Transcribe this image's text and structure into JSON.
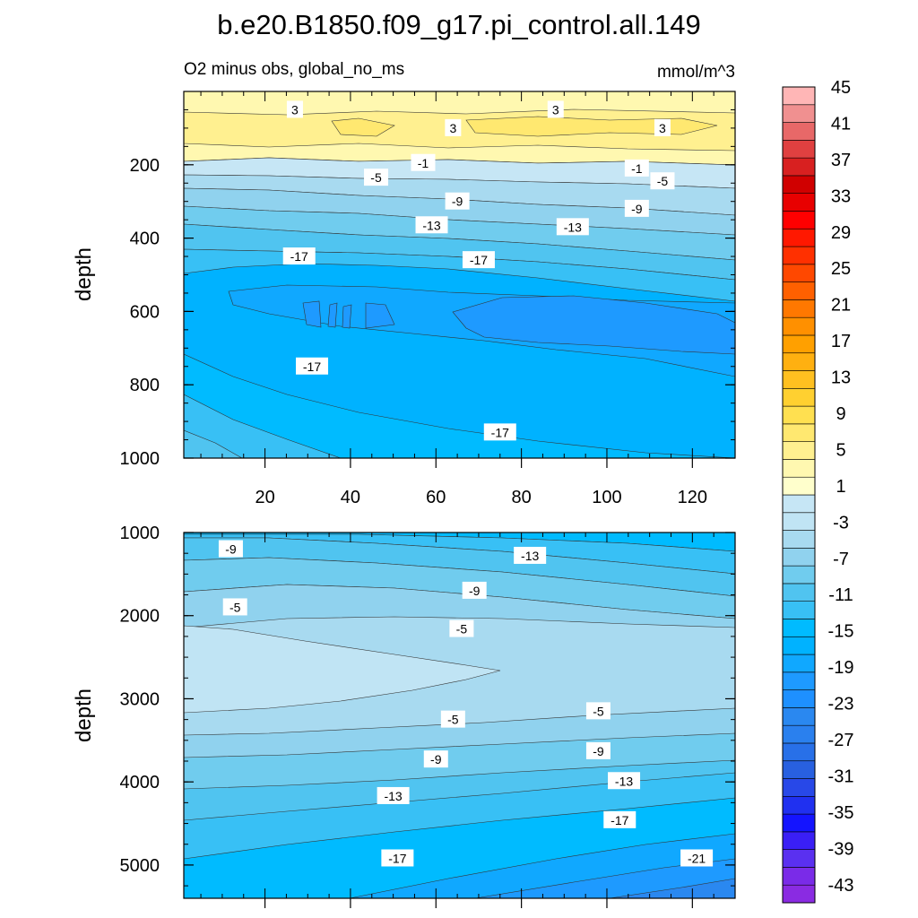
{
  "chart_data": {
    "type": "contour",
    "title": "b.e20.B1850.f09_g17.pi_control.all.149",
    "subtitle_left": "O2 minus obs, global_no_ms",
    "subtitle_right": "mmol/m^3",
    "ylabel": "depth",
    "colorbar": {
      "levels": [
        -45,
        -43,
        -41,
        -39,
        -37,
        -35,
        -33,
        -31,
        -29,
        -27,
        -25,
        -23,
        -21,
        -19,
        -17,
        -15,
        -13,
        -11,
        -9,
        -7,
        -5,
        -3,
        -1,
        1,
        3,
        5,
        7,
        9,
        11,
        13,
        15,
        17,
        19,
        21,
        23,
        25,
        27,
        29,
        31,
        33,
        35,
        37,
        39,
        41,
        43,
        45
      ],
      "tick_labels": [
        "45",
        "41",
        "37",
        "33",
        "29",
        "25",
        "21",
        "17",
        "13",
        "9",
        "5",
        "1",
        "-3",
        "-7",
        "-11",
        "-15",
        "-19",
        "-23",
        "-27",
        "-31",
        "-35",
        "-39",
        "-43"
      ],
      "colors": [
        "#8a2be2",
        "#7a2be8",
        "#5a30f0",
        "#3a1ff5",
        "#1414ff",
        "#2030f0",
        "#2848e8",
        "#2860e0",
        "#2870e8",
        "#2a80ee",
        "#2a88f0",
        "#1e90ff",
        "#1e9aff",
        "#10a8ff",
        "#00b2ff",
        "#00bbff",
        "#38c0f5",
        "#50c4f0",
        "#70ccee",
        "#90d2ee",
        "#a8daf0",
        "#c0e4f4",
        "#c6e6f5",
        "#ffffcc",
        "#fff8b0",
        "#fff090",
        "#ffe870",
        "#ffe050",
        "#ffd030",
        "#ffc020",
        "#ffb010",
        "#ffa000",
        "#ff9000",
        "#ff7800",
        "#ff6000",
        "#ff4800",
        "#ff3000",
        "#ff1800",
        "#ff0000",
        "#e80000",
        "#d00000",
        "#d82020",
        "#e04040",
        "#e86868",
        "#f09090",
        "#ffb6b6"
      ]
    },
    "panels": [
      {
        "name": "upper",
        "y_range": [
          0,
          1000
        ],
        "y_ticks": [
          200,
          400,
          600,
          800,
          1000
        ],
        "x_range": [
          1,
          130
        ],
        "x_ticks": [
          20,
          40,
          60,
          80,
          100,
          120
        ],
        "contour_labels": [
          {
            "text": "3",
            "x": 27,
            "y": 50
          },
          {
            "text": "3",
            "x": 88,
            "y": 50
          },
          {
            "text": "3",
            "x": 64,
            "y": 100
          },
          {
            "text": "3",
            "x": 113,
            "y": 100
          },
          {
            "text": "-1",
            "x": 57,
            "y": 195
          },
          {
            "text": "-1",
            "x": 107,
            "y": 210
          },
          {
            "text": "-5",
            "x": 46,
            "y": 235
          },
          {
            "text": "-5",
            "x": 113,
            "y": 245
          },
          {
            "text": "-9",
            "x": 65,
            "y": 300
          },
          {
            "text": "-9",
            "x": 107,
            "y": 320
          },
          {
            "text": "-13",
            "x": 59,
            "y": 365
          },
          {
            "text": "-13",
            "x": 92,
            "y": 370
          },
          {
            "text": "-17",
            "x": 28,
            "y": 450
          },
          {
            "text": "-17",
            "x": 70,
            "y": 460
          },
          {
            "text": "-17",
            "x": 31,
            "y": 750
          },
          {
            "text": "-17",
            "x": 75,
            "y": 930
          }
        ]
      },
      {
        "name": "lower",
        "y_range": [
          1000,
          5400
        ],
        "y_ticks": [
          1000,
          2000,
          3000,
          4000,
          5000
        ],
        "x_range": [
          1,
          130
        ],
        "x_ticks": [
          20,
          40,
          60,
          80,
          100,
          120
        ],
        "contour_labels": [
          {
            "text": "-9",
            "x": 12,
            "y": 1200
          },
          {
            "text": "-13",
            "x": 82,
            "y": 1280
          },
          {
            "text": "-5",
            "x": 13,
            "y": 1900
          },
          {
            "text": "-9",
            "x": 69,
            "y": 1700
          },
          {
            "text": "-5",
            "x": 66,
            "y": 2160
          },
          {
            "text": "-5",
            "x": 64,
            "y": 3250
          },
          {
            "text": "-5",
            "x": 98,
            "y": 3150
          },
          {
            "text": "-9",
            "x": 60,
            "y": 3730
          },
          {
            "text": "-9",
            "x": 98,
            "y": 3630
          },
          {
            "text": "-13",
            "x": 50,
            "y": 4170
          },
          {
            "text": "-13",
            "x": 104,
            "y": 3990
          },
          {
            "text": "-17",
            "x": 103,
            "y": 4460
          },
          {
            "text": "-17",
            "x": 51,
            "y": 4920
          },
          {
            "text": "-21",
            "x": 121,
            "y": 4920
          }
        ]
      }
    ]
  }
}
